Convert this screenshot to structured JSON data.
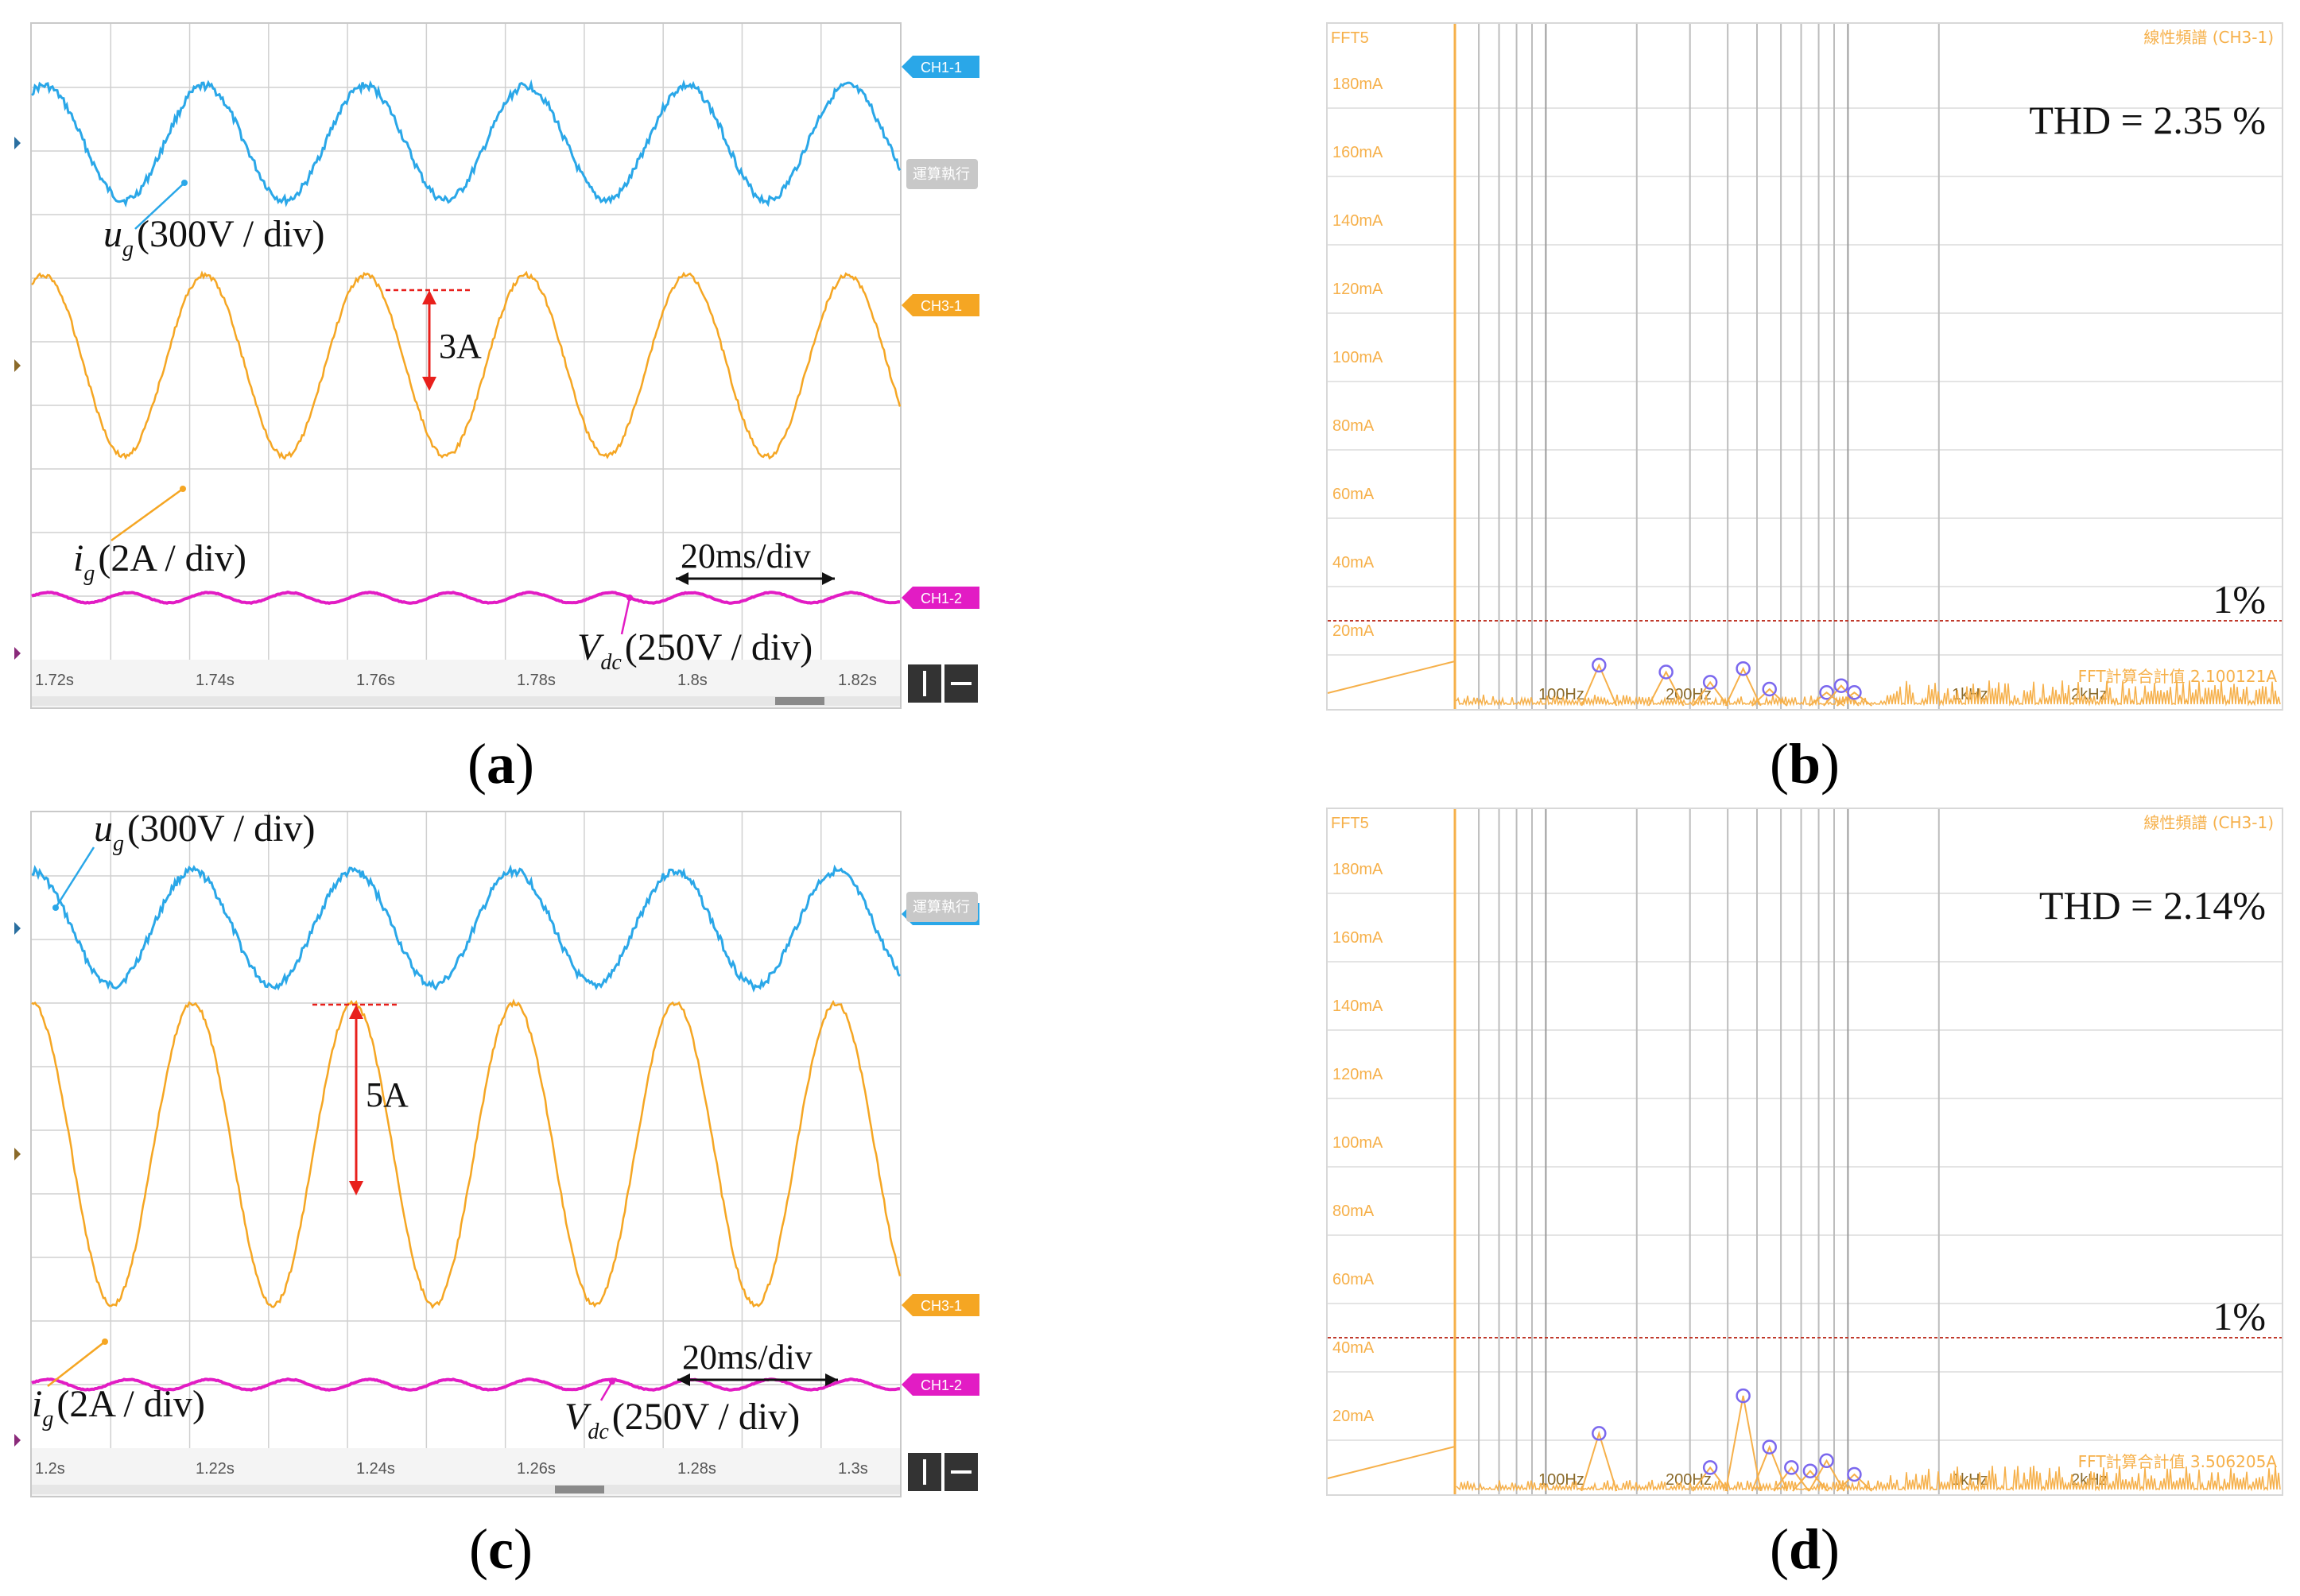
{
  "captions": {
    "a": "a",
    "b": "b",
    "c": "c",
    "d": "d"
  },
  "colors": {
    "ch1": "#2aa7e8",
    "ch3": "#f5a623",
    "vdc": "#e21cc4",
    "grid": "#d0d0d0",
    "fft": "#f6b04a",
    "marker": "#7b68ee",
    "annot": "#e8201c"
  },
  "chart_data": [
    {
      "id": "a",
      "type": "line",
      "x_tick_labels": [
        "1.72s",
        "1.74s",
        "1.76s",
        "1.78s",
        "1.8s",
        "1.82s"
      ],
      "channels": [
        "CH1-1",
        "CH3-1",
        "CH1-2"
      ],
      "button_label": "運算執行",
      "annotations": {
        "ug_sym": "u",
        "ug_sub": "g",
        "ug_scale": "(300V / div)",
        "ig_sym": "i",
        "ig_sub": "g",
        "ig_scale": "(2A / div)",
        "vdc_sym": "V",
        "vdc_sub": "dc",
        "vdc_scale": "(250V / div)",
        "amp": "3A",
        "timebase": "20ms/div"
      },
      "series": [
        {
          "name": "u_g",
          "type": "sine",
          "periods": 5.4,
          "amplitude_div": 0.9
        },
        {
          "name": "i_g",
          "type": "sine",
          "periods": 5.4,
          "amplitude_div": 1.5
        },
        {
          "name": "V_dc",
          "type": "ripple",
          "periods": 10.8,
          "amplitude_div": 0.04
        }
      ]
    },
    {
      "id": "b",
      "type": "bar",
      "title": "FFT5",
      "header_right": "線性頻譜 (CH3-1)",
      "y_tick_labels": [
        "180mA",
        "160mA",
        "140mA",
        "120mA",
        "100mA",
        "80mA",
        "60mA",
        "40mA",
        "20mA"
      ],
      "x_tick_labels": [
        "100Hz",
        "200Hz",
        "1kHz",
        "2kHz"
      ],
      "thd": "THD = 2.35 %",
      "ref_label": "1%",
      "ref_value_mA": 30,
      "footer": "FFT計算合計值  2.100121A",
      "harmonics_mA": [
        {
          "freq_hz": 50,
          "value_mA": 200
        },
        {
          "freq_hz": 150,
          "value_mA": 17
        },
        {
          "freq_hz": 250,
          "value_mA": 15
        },
        {
          "freq_hz": 350,
          "value_mA": 12
        },
        {
          "freq_hz": 450,
          "value_mA": 16
        },
        {
          "freq_hz": 550,
          "value_mA": 10
        },
        {
          "freq_hz": 850,
          "value_mA": 9
        },
        {
          "freq_hz": 950,
          "value_mA": 11
        },
        {
          "freq_hz": 1050,
          "value_mA": 9
        }
      ]
    },
    {
      "id": "c",
      "type": "line",
      "x_tick_labels": [
        "1.2s",
        "1.22s",
        "1.24s",
        "1.26s",
        "1.28s",
        "1.3s"
      ],
      "channels": [
        "CH1-1",
        "CH3-1",
        "CH1-2"
      ],
      "button_label": "運算執行",
      "annotations": {
        "ug_sym": "u",
        "ug_sub": "g",
        "ug_scale": "(300V / div)",
        "ig_sym": "i",
        "ig_sub": "g",
        "ig_scale": "(2A / div)",
        "vdc_sym": "V",
        "vdc_sub": "dc",
        "vdc_scale": "(250V / div)",
        "amp": "5A",
        "timebase": "20ms/div"
      },
      "series": [
        {
          "name": "u_g",
          "type": "sine",
          "periods": 5.4,
          "amplitude_div": 0.9
        },
        {
          "name": "i_g",
          "type": "sine",
          "periods": 5.4,
          "amplitude_div": 2.5
        },
        {
          "name": "V_dc",
          "type": "ripple",
          "periods": 10.8,
          "amplitude_div": 0.04
        }
      ]
    },
    {
      "id": "d",
      "type": "bar",
      "title": "FFT5",
      "header_right": "線性頻譜 (CH3-1)",
      "y_tick_labels": [
        "180mA",
        "160mA",
        "140mA",
        "120mA",
        "100mA",
        "80mA",
        "60mA",
        "40mA",
        "20mA"
      ],
      "x_tick_labels": [
        "100Hz",
        "200Hz",
        "1kHz",
        "2kHz"
      ],
      "thd": "THD = 2.14%",
      "ref_label": "1%",
      "ref_value_mA": 50,
      "footer": "FFT計算合計值  3.506205A",
      "harmonics_mA": [
        {
          "freq_hz": 50,
          "value_mA": 200
        },
        {
          "freq_hz": 150,
          "value_mA": 22
        },
        {
          "freq_hz": 350,
          "value_mA": 12
        },
        {
          "freq_hz": 450,
          "value_mA": 33
        },
        {
          "freq_hz": 550,
          "value_mA": 18
        },
        {
          "freq_hz": 650,
          "value_mA": 12
        },
        {
          "freq_hz": 750,
          "value_mA": 11
        },
        {
          "freq_hz": 850,
          "value_mA": 14
        },
        {
          "freq_hz": 1050,
          "value_mA": 10
        }
      ]
    }
  ]
}
